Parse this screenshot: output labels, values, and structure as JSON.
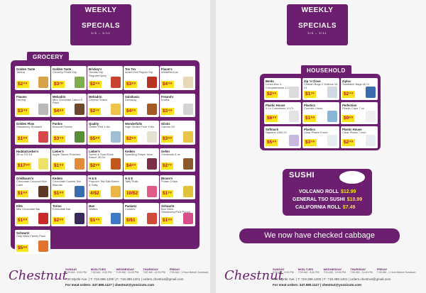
{
  "banner": {
    "line1": "WEEKLY",
    "line2": "SPECIALS",
    "dates": "3/5 – 3/11"
  },
  "grocery": {
    "title": "GROCERY",
    "items": [
      {
        "brand": "Golden Taste",
        "desc": "Tahina",
        "price": "$2⁴⁹",
        "img": "#d8a24a"
      },
      {
        "brand": "Golden Taste",
        "desc": "Crunchy Pickle Dip",
        "price": "$3⁷⁹",
        "img": "#7fae4e"
      },
      {
        "brand": "Brickey's",
        "desc": "Tomato Dip Regular/Spicy",
        "price": "$2⁴⁹",
        "img": "#c9422f"
      },
      {
        "brand": "Tov Tov",
        "desc": "Israeli Hot Pepper Dip",
        "price": "$3⁹⁹",
        "img": "#b93323"
      },
      {
        "brand": "Flaum's",
        "desc": "Whitefish/Lox",
        "price": "$4⁴⁹",
        "img": "#e7d9b8"
      },
      {
        "brand": "Flaums",
        "desc": "Herring",
        "price": "$3⁴⁹",
        "img": "#b9b9b9"
      },
      {
        "brand": "Mehadrin",
        "desc": "Mini Chocolate Labon 5 Pack",
        "price": "$4⁹⁹",
        "img": "#6d4a2f"
      },
      {
        "brand": "Mehadrin",
        "desc": "Cheese Snack",
        "price": "$2⁷⁹",
        "img": "#f0c44b"
      },
      {
        "brand": "Salatbasic",
        "desc": "Dressing",
        "price": "$4⁹⁹",
        "img": "#a45a25"
      },
      {
        "brand": "Freund's",
        "desc": "Kodka",
        "price": "$3⁴⁹",
        "img": "#d4d4d4"
      },
      {
        "brand": "Golden Flow",
        "desc": "Strawberry Rhubarb",
        "price": "$1⁹⁹",
        "img": "#d8484a"
      },
      {
        "brand": "Pardes",
        "desc": "Broccoli Florets",
        "price": "$3⁴⁹",
        "img": "#5a8f3a"
      },
      {
        "brand": "Quality",
        "desc": "Gefilte Fish 4 lbs",
        "price": "$5⁹⁹",
        "img": "#9fbfd6"
      },
      {
        "brand": "Wonderfulls",
        "desc": "High Gluten Flour 4 lbs",
        "price": "$2⁹⁹",
        "img": "#e5e0cf"
      },
      {
        "brand": "Glicks",
        "desc": "Canola Oil",
        "price": "$3⁹⁹",
        "img": "#e9c34a"
      },
      {
        "brand": "Haddar/Lieber's",
        "desc": "28 oz Oil 3 ft",
        "price": "$17⁹⁹",
        "img": "#ede16a"
      },
      {
        "brand": "Lieber's",
        "desc": "Apple Sauce Pouches",
        "price": "$1⁹⁹",
        "img": "#e38b3a"
      },
      {
        "brand": "Lieber's",
        "desc": "Sweet & Sour/Duck Sauce 28 Oz",
        "price": "$2⁹⁹",
        "img": "#c2571f"
      },
      {
        "brand": "Kedem",
        "desc": "Sparkling Grape Juice",
        "price": "$4⁹⁹",
        "img": "#7c2d4a"
      },
      {
        "brand": "Gefen",
        "desc": "Chestnuts 5 oz",
        "price": "$2⁷⁹",
        "img": "#8a5a2c"
      },
      {
        "brand": "Goldbaum's",
        "desc": "Chocolate Coconut Rice Cake",
        "price": "$1⁹⁹",
        "img": "#5b3924"
      },
      {
        "brand": "Kedem",
        "desc": "Chocolate Coated Tea Biscuits",
        "price": "$1⁹⁹",
        "img": "#3a6cb0"
      },
      {
        "brand": "H & E",
        "desc": "Popcorn Tea Salt/Sweet & Salty",
        "price": "4/$2",
        "img": "#e9b64a"
      },
      {
        "brand": "H & E",
        "desc": "Taffy Rolls",
        "price": "10/$2",
        "img": "#e05b8a"
      },
      {
        "brand": "Bloom's",
        "desc": "Potato Chips",
        "price": "$1⁷⁹",
        "img": "#e2c23d"
      },
      {
        "brand": "Elite",
        "desc": "Milk Chocolate Bar",
        "price": "$1⁹⁹",
        "img": "#c62a2a"
      },
      {
        "brand": "Torino",
        "desc": "Chocolate Bar",
        "price": "$2⁹⁹",
        "img": "#3b2a5a"
      },
      {
        "brand": "Man",
        "desc": "Wafers",
        "price": "$1⁴⁹",
        "img": "#3d7ac3"
      },
      {
        "brand": "Paskesz",
        "desc": "Cookies",
        "price": "$/$1",
        "img": "#d04a3a"
      },
      {
        "brand": "Schwartz",
        "desc": "Bon Bons Strawberry/Fruit Punch",
        "price": "$1⁹⁹",
        "img": "#d64e8c"
      }
    ],
    "last": {
      "brand": "Schwartz",
      "desc": "Chip Bites Family Pack",
      "price": "$5⁹⁹",
      "img": "#e2732f"
    }
  },
  "household": {
    "title": "HOUSEHOLD",
    "items": [
      {
        "brand": "Bento",
        "desc": "Lunch Box 3 Compartments 4 Ct",
        "price": "$2⁹⁹",
        "img": "#dcdcdc"
      },
      {
        "brand": "Zip 'n Close",
        "desc": "Challah Bags 2 Gallons 15 Ct",
        "price": "$1⁷⁹",
        "img": "#cfd8e3"
      },
      {
        "brand": "Ziploc",
        "desc": "Sandwich Bags 40 Ct",
        "price": "$2⁴⁹",
        "img": "#3a6cb0"
      },
      {
        "brand": "Plastic House",
        "desc": "4 Lb Containers 10 Ct",
        "price": "$6⁹⁹",
        "img": "#e3e3e3"
      },
      {
        "brand": "Plastico",
        "desc": "Counter Liners",
        "price": "$1⁹⁹",
        "img": "#8ab4d8"
      },
      {
        "brand": "Perfection",
        "desc": "Plastic Cups 7 oz",
        "price": "$0⁹⁹",
        "img": "#f0f0f0"
      },
      {
        "brand": "Softouch",
        "desc": "Napkins 1000 Ct",
        "price": "$5⁹⁹",
        "img": "#c7b9e0"
      },
      {
        "brand": "Plastico",
        "desc": "Clear Plates 9 inch",
        "price": "$3⁴⁹",
        "img": "#e6eef4"
      },
      {
        "brand": "Plastic House",
        "desc": "Clear Plates 7 inch",
        "price": "$2⁴⁹",
        "img": "#e6eef4"
      }
    ]
  },
  "sushi": {
    "title": "SUSHI",
    "rows": [
      {
        "name": "VOLCANO ROLL",
        "price": "$12.99"
      },
      {
        "name": "GENERAL TSO SUSHI",
        "price": "$10.99"
      },
      {
        "name": "CALIFORNIA ROLL",
        "price": "$7.49"
      }
    ]
  },
  "notice": "We now have checked cabbage",
  "footer": {
    "logo": "Chestnut",
    "hours": [
      {
        "day": "SUNDAY",
        "time": "8:00 AM - 9:00 PM"
      },
      {
        "day": "MON-TUES",
        "time": "7:00 AM - 9:00 PM"
      },
      {
        "day": "WEDNESDAY",
        "time": "7:00 AM - 10:00 PM"
      },
      {
        "day": "THURSDAY",
        "time": "7:00 AM - 11:00 PM"
      },
      {
        "day": "FRIDAY",
        "time": "7:00 AM - 1 Hour Before Sundown"
      }
    ],
    "address": "700 Myrtle Ave.  |  T: 718.388.1200  |  F: 718.388.1201  |  orders.chestnut@gmail.com",
    "orders": "For meat orders: 347.585.1127  |  chestnut@yossicuts.com"
  },
  "colors": {
    "brand": "#6b1f6e",
    "price_bg": "#f7e41b",
    "price_text": "#c1121f"
  }
}
